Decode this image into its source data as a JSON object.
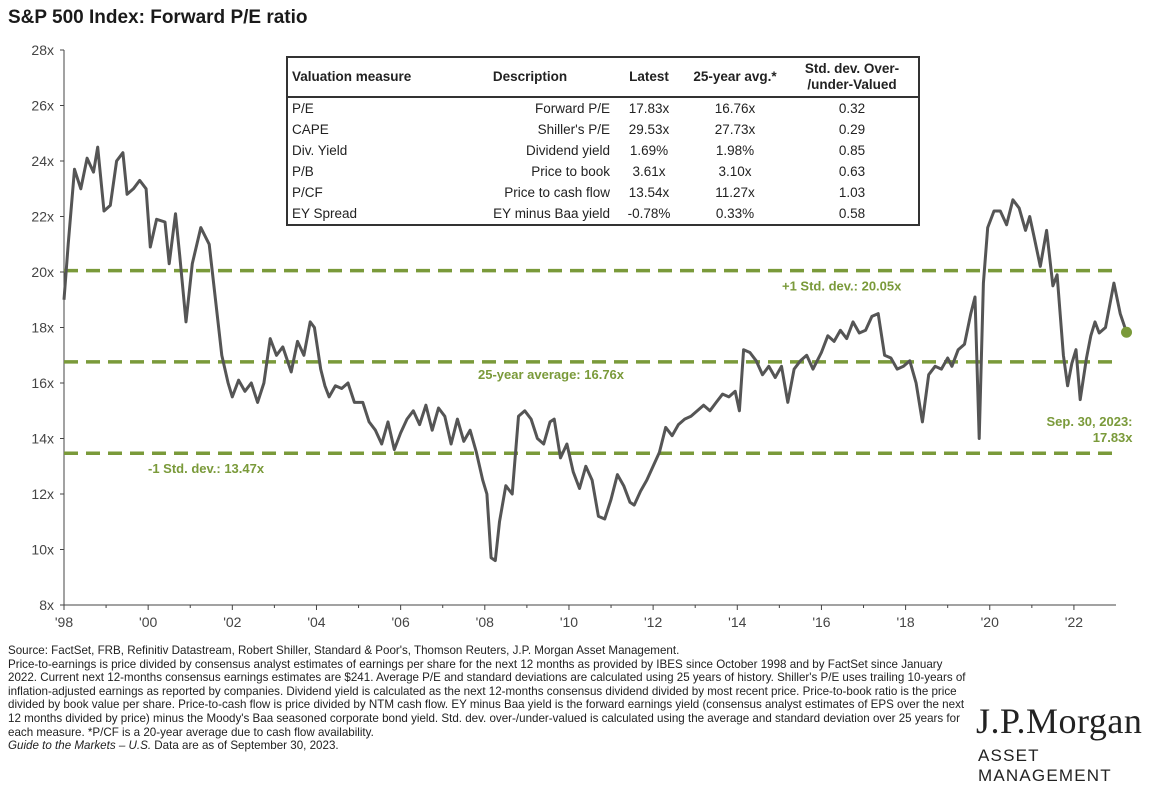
{
  "title": "S&P 500 Index: Forward P/E ratio",
  "colors": {
    "line": "#555555",
    "reference": "#7a9a3a",
    "axis": "#444444"
  },
  "chart_data": {
    "type": "line",
    "title": "S&P 500 Index: Forward P/E ratio",
    "xlabel": "",
    "ylabel": "",
    "xlim": [
      1998,
      2023
    ],
    "ylim": [
      8,
      28
    ],
    "y_ticks": [
      "8x",
      "10x",
      "12x",
      "14x",
      "16x",
      "18x",
      "20x",
      "22x",
      "24x",
      "26x",
      "28x"
    ],
    "x_ticks": [
      "'98",
      "'00",
      "'02",
      "'04",
      "'06",
      "'08",
      "'10",
      "'12",
      "'14",
      "'16",
      "'18",
      "'20",
      "'22"
    ],
    "series": [
      {
        "values": [
          [
            1998.0,
            19.0
          ],
          [
            1998.1,
            21.0
          ],
          [
            1998.25,
            23.7
          ],
          [
            1998.4,
            23.0
          ],
          [
            1998.55,
            24.1
          ],
          [
            1998.7,
            23.6
          ],
          [
            1998.8,
            24.5
          ],
          [
            1998.95,
            22.2
          ],
          [
            1999.1,
            22.4
          ],
          [
            1999.25,
            24.0
          ],
          [
            1999.4,
            24.3
          ],
          [
            1999.5,
            22.8
          ],
          [
            1999.65,
            23.0
          ],
          [
            1999.8,
            23.3
          ],
          [
            1999.95,
            23.0
          ],
          [
            2000.05,
            20.9
          ],
          [
            2000.2,
            21.9
          ],
          [
            2000.4,
            21.8
          ],
          [
            2000.5,
            20.3
          ],
          [
            2000.65,
            22.1
          ],
          [
            2000.75,
            20.6
          ],
          [
            2000.9,
            18.2
          ],
          [
            2001.05,
            20.3
          ],
          [
            2001.25,
            21.6
          ],
          [
            2001.45,
            21.0
          ],
          [
            2001.6,
            19.0
          ],
          [
            2001.75,
            17.0
          ],
          [
            2001.9,
            16.0
          ],
          [
            2002.0,
            15.5
          ],
          [
            2002.15,
            16.1
          ],
          [
            2002.3,
            15.7
          ],
          [
            2002.45,
            16.0
          ],
          [
            2002.6,
            15.3
          ],
          [
            2002.75,
            16.0
          ],
          [
            2002.9,
            17.6
          ],
          [
            2003.05,
            17.0
          ],
          [
            2003.2,
            17.3
          ],
          [
            2003.4,
            16.4
          ],
          [
            2003.55,
            17.5
          ],
          [
            2003.7,
            17.0
          ],
          [
            2003.85,
            18.2
          ],
          [
            2003.95,
            18.0
          ],
          [
            2004.1,
            16.5
          ],
          [
            2004.2,
            15.9
          ],
          [
            2004.3,
            15.5
          ],
          [
            2004.45,
            15.9
          ],
          [
            2004.6,
            15.8
          ],
          [
            2004.75,
            16.0
          ],
          [
            2004.9,
            15.3
          ],
          [
            2005.1,
            15.3
          ],
          [
            2005.25,
            14.6
          ],
          [
            2005.4,
            14.3
          ],
          [
            2005.55,
            13.8
          ],
          [
            2005.7,
            14.6
          ],
          [
            2005.85,
            13.6
          ],
          [
            2006.0,
            14.2
          ],
          [
            2006.15,
            14.7
          ],
          [
            2006.3,
            15.0
          ],
          [
            2006.45,
            14.5
          ],
          [
            2006.6,
            15.2
          ],
          [
            2006.75,
            14.3
          ],
          [
            2006.9,
            15.1
          ],
          [
            2007.05,
            14.8
          ],
          [
            2007.2,
            13.8
          ],
          [
            2007.35,
            14.7
          ],
          [
            2007.5,
            13.9
          ],
          [
            2007.65,
            14.3
          ],
          [
            2007.8,
            13.5
          ],
          [
            2007.95,
            12.5
          ],
          [
            2008.05,
            12.0
          ],
          [
            2008.15,
            9.7
          ],
          [
            2008.25,
            9.6
          ],
          [
            2008.35,
            11.0
          ],
          [
            2008.5,
            12.3
          ],
          [
            2008.65,
            12.0
          ],
          [
            2008.8,
            14.8
          ],
          [
            2008.95,
            15.0
          ],
          [
            2009.1,
            14.7
          ],
          [
            2009.25,
            14.0
          ],
          [
            2009.4,
            13.8
          ],
          [
            2009.55,
            14.6
          ],
          [
            2009.65,
            14.7
          ],
          [
            2009.8,
            13.3
          ],
          [
            2009.95,
            13.8
          ],
          [
            2010.1,
            12.8
          ],
          [
            2010.25,
            12.2
          ],
          [
            2010.4,
            13.0
          ],
          [
            2010.55,
            12.5
          ],
          [
            2010.7,
            11.2
          ],
          [
            2010.85,
            11.1
          ],
          [
            2011.0,
            11.8
          ],
          [
            2011.15,
            12.7
          ],
          [
            2011.3,
            12.3
          ],
          [
            2011.45,
            11.7
          ],
          [
            2011.55,
            11.6
          ],
          [
            2011.7,
            12.1
          ],
          [
            2011.85,
            12.5
          ],
          [
            2012.0,
            13.0
          ],
          [
            2012.15,
            13.5
          ],
          [
            2012.3,
            14.4
          ],
          [
            2012.45,
            14.1
          ],
          [
            2012.6,
            14.5
          ],
          [
            2012.75,
            14.7
          ],
          [
            2012.9,
            14.8
          ],
          [
            2013.05,
            15.0
          ],
          [
            2013.2,
            15.2
          ],
          [
            2013.35,
            15.0
          ],
          [
            2013.5,
            15.3
          ],
          [
            2013.65,
            15.6
          ],
          [
            2013.8,
            15.5
          ],
          [
            2013.95,
            15.7
          ],
          [
            2014.05,
            15.0
          ],
          [
            2014.15,
            17.2
          ],
          [
            2014.3,
            17.1
          ],
          [
            2014.45,
            16.8
          ],
          [
            2014.6,
            16.3
          ],
          [
            2014.75,
            16.6
          ],
          [
            2014.9,
            16.2
          ],
          [
            2015.05,
            16.6
          ],
          [
            2015.2,
            15.3
          ],
          [
            2015.35,
            16.5
          ],
          [
            2015.5,
            16.8
          ],
          [
            2015.65,
            17.0
          ],
          [
            2015.8,
            16.5
          ],
          [
            2016.0,
            17.1
          ],
          [
            2016.15,
            17.7
          ],
          [
            2016.3,
            17.5
          ],
          [
            2016.45,
            17.9
          ],
          [
            2016.6,
            17.6
          ],
          [
            2016.75,
            18.2
          ],
          [
            2016.9,
            17.8
          ],
          [
            2017.05,
            17.9
          ],
          [
            2017.2,
            18.4
          ],
          [
            2017.35,
            18.5
          ],
          [
            2017.5,
            17.0
          ],
          [
            2017.65,
            16.9
          ],
          [
            2017.8,
            16.5
          ],
          [
            2017.95,
            16.6
          ],
          [
            2018.1,
            16.8
          ],
          [
            2018.25,
            16.0
          ],
          [
            2018.4,
            14.6
          ],
          [
            2018.55,
            16.3
          ],
          [
            2018.7,
            16.6
          ],
          [
            2018.85,
            16.5
          ],
          [
            2019.0,
            16.9
          ],
          [
            2019.1,
            16.6
          ],
          [
            2019.25,
            17.2
          ],
          [
            2019.4,
            17.4
          ],
          [
            2019.55,
            18.5
          ],
          [
            2019.65,
            19.1
          ],
          [
            2019.75,
            14.0
          ],
          [
            2019.85,
            19.6
          ],
          [
            2019.95,
            21.6
          ],
          [
            2020.1,
            22.2
          ],
          [
            2020.25,
            22.2
          ],
          [
            2020.4,
            21.7
          ],
          [
            2020.55,
            22.6
          ],
          [
            2020.7,
            22.3
          ],
          [
            2020.85,
            21.5
          ],
          [
            2020.95,
            22.0
          ],
          [
            2021.05,
            21.3
          ],
          [
            2021.2,
            20.2
          ],
          [
            2021.35,
            21.5
          ],
          [
            2021.5,
            19.5
          ],
          [
            2021.6,
            19.9
          ],
          [
            2021.75,
            17.0
          ],
          [
            2021.85,
            15.9
          ],
          [
            2021.95,
            16.7
          ],
          [
            2022.05,
            17.2
          ],
          [
            2022.15,
            15.4
          ],
          [
            2022.3,
            16.9
          ],
          [
            2022.4,
            17.7
          ],
          [
            2022.5,
            18.2
          ],
          [
            2022.6,
            17.8
          ],
          [
            2022.75,
            18.0
          ],
          [
            2022.95,
            19.6
          ],
          [
            2023.1,
            18.5
          ],
          [
            2023.25,
            17.83
          ]
        ]
      }
    ],
    "reference_lines": [
      {
        "value": 20.05,
        "label": "+1 Std. dev.: 20.05x"
      },
      {
        "value": 16.76,
        "label": "25-year average: 16.76x"
      },
      {
        "value": 13.47,
        "label": "-1 Std. dev.: 13.47x"
      }
    ],
    "annotations": [
      {
        "x": 2023.25,
        "y": 17.83,
        "text": "Sep. 30, 2023:",
        "text2": "17.83x"
      }
    ],
    "grid": false
  },
  "table": {
    "headers": [
      "Valuation measure",
      "Description",
      "Latest",
      "25-year avg.*",
      "Std. dev. Over-/under-Valued"
    ],
    "header_last_line1": "Std. dev. Over-",
    "header_last_line2": "/under-Valued",
    "rows": [
      [
        "P/E",
        "Forward P/E",
        "17.83x",
        "16.76x",
        "0.32"
      ],
      [
        "CAPE",
        "Shiller's P/E",
        "29.53x",
        "27.73x",
        "0.29"
      ],
      [
        "Div. Yield",
        "Dividend yield",
        "1.69%",
        "1.98%",
        "0.85"
      ],
      [
        "P/B",
        "Price to book",
        "3.61x",
        "3.10x",
        "0.63"
      ],
      [
        "P/CF",
        "Price to cash flow",
        "13.54x",
        "11.27x",
        "1.03"
      ],
      [
        "EY Spread",
        "EY minus Baa yield",
        "-0.78%",
        "0.33%",
        "0.58"
      ]
    ]
  },
  "footnote": {
    "source": "Source: FactSet, FRB, Refinitiv Datastream, Robert Shiller, Standard & Poor's, Thomson Reuters, J.P. Morgan Asset Management.",
    "body": "Price-to-earnings is price divided by consensus analyst estimates of earnings per share for the next 12 months as provided by IBES since October 1998 and by FactSet since January 2022. Current next 12-months consensus earnings estimates are $241. Average P/E and standard deviations are calculated using 25 years of history. Shiller's P/E uses trailing 10-years of inflation-adjusted earnings as reported by companies. Dividend yield is calculated as the next 12-months consensus dividend divided by most recent price. Price-to-book ratio is the price divided by book value per share. Price-to-cash flow is price divided by NTM cash flow. EY minus Baa yield is the forward earnings yield (consensus analyst estimates of EPS over the next 12 months divided by price) minus the Moody's Baa seasoned corporate bond yield. Std. dev. over-/under-valued is calculated using the average and standard deviation over 25 years for each measure. *P/CF is a 20-year average due to cash flow availability.",
    "guide": "Guide to the Markets – U.S.",
    "asof": " Data are as of September 30, 2023."
  },
  "brand": {
    "name": "J.P.Morgan",
    "sub": "ASSET MANAGEMENT"
  }
}
